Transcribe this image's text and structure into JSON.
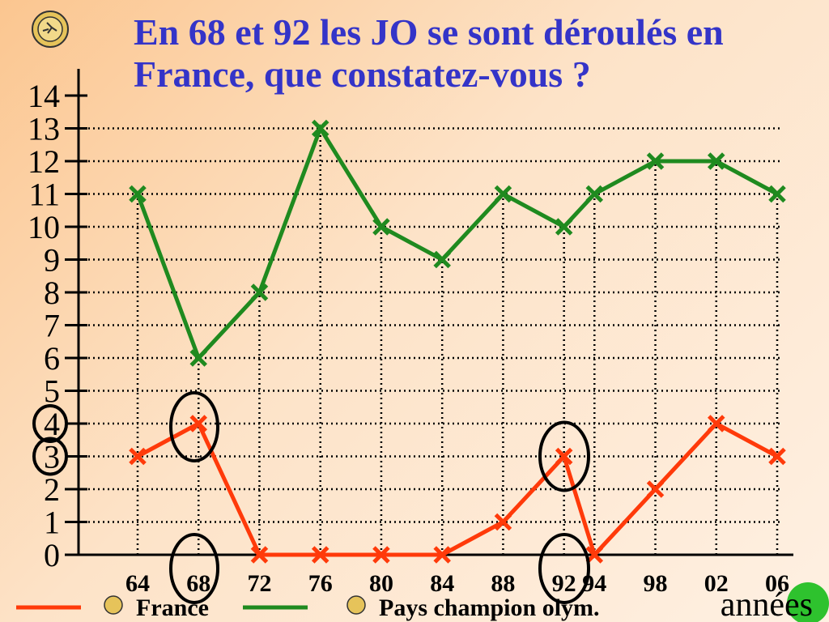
{
  "chart_data": {
    "type": "line",
    "title": "En 68 et 92 les JO se sont déroulés en France, que constatez-vous ?",
    "x_label": "années",
    "categories": [
      "64",
      "68",
      "72",
      "76",
      "80",
      "84",
      "88",
      "92",
      "94",
      "98",
      "02",
      "06"
    ],
    "series": [
      {
        "name": "France",
        "color": "#ff3a0a",
        "values": [
          3,
          4,
          0,
          0,
          0,
          0,
          1,
          3,
          0,
          2,
          4,
          3
        ]
      },
      {
        "name": "Pays champion olym.",
        "color": "#1f8a1f",
        "values": [
          11,
          6,
          8,
          13,
          10,
          9,
          11,
          10,
          11,
          12,
          12,
          11
        ]
      }
    ],
    "ylim": [
      0,
      14
    ],
    "yticks": [
      0,
      1,
      2,
      3,
      4,
      5,
      6,
      7,
      8,
      9,
      10,
      11,
      12,
      13,
      14
    ],
    "grid": true
  }
}
